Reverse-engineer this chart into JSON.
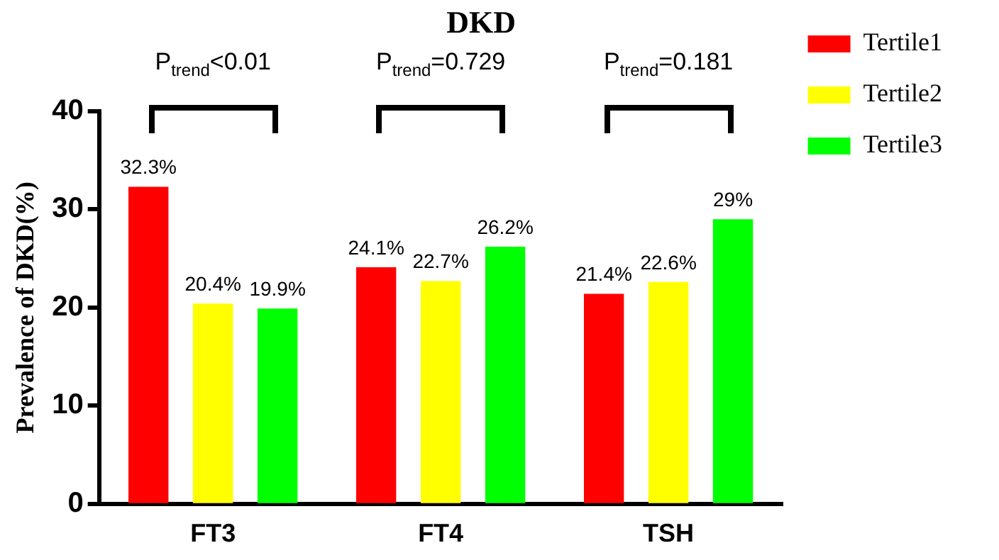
{
  "chart_data": {
    "type": "bar",
    "title": "DKD",
    "ylabel": "Prevalence of DKD(%)",
    "categories": [
      "FT3",
      "FT4",
      "TSH"
    ],
    "series": [
      {
        "name": "Tertile1",
        "color": "#ff0000",
        "values": [
          32.3,
          24.1,
          21.4
        ],
        "value_labels": [
          "32.3%",
          "24.1%",
          "21.4%"
        ]
      },
      {
        "name": "Tertile2",
        "color": "#ffff00",
        "values": [
          20.4,
          22.7,
          22.6
        ],
        "value_labels": [
          "20.4%",
          "22.7%",
          "22.6%"
        ]
      },
      {
        "name": "Tertile3",
        "color": "#00ff00",
        "values": [
          19.9,
          26.2,
          29
        ],
        "value_labels": [
          "19.9%",
          "26.2%",
          "29%"
        ]
      }
    ],
    "ylim": [
      0,
      40
    ],
    "yticks": [
      0,
      10,
      20,
      30,
      40
    ],
    "grid": false,
    "legend": "right",
    "annotations": [
      "P$_{trend}$<0.01",
      "P$_{trend}$=0.729",
      "P$_{trend}$=0.181"
    ]
  }
}
